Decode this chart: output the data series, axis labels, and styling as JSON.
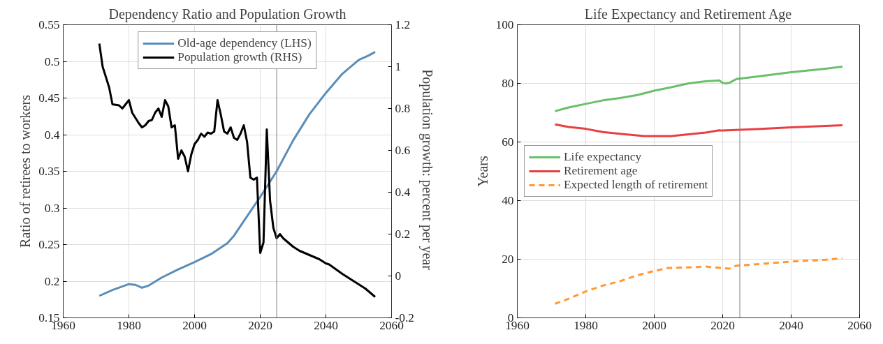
{
  "chart_data": [
    {
      "type": "line",
      "title": "Dependency Ratio and Population Growth",
      "ylabel": "Ratio of retirees to workers",
      "y2label": "Population growth:  percent per year",
      "xlim": [
        1960,
        2060
      ],
      "xticks": [
        1960,
        1980,
        2000,
        2020,
        2040,
        2060
      ],
      "ylim": [
        0.15,
        0.55
      ],
      "yticks": [
        0.15,
        0.2,
        0.25,
        0.3,
        0.35,
        0.4,
        0.45,
        0.5,
        0.55
      ],
      "y2lim": [
        -0.2,
        1.2
      ],
      "y2ticks": [
        -0.2,
        0,
        0.2,
        0.4,
        0.6,
        0.8,
        1,
        1.2
      ],
      "grid": true,
      "legend": "top",
      "line_style": "solid",
      "ref_lines": [
        {
          "axis": "x",
          "value": 2025,
          "color": "#808080"
        }
      ],
      "series": [
        {
          "name": "Old-age dependency (LHS)",
          "color": "#5b8db8",
          "x": [
            1971,
            1975,
            1980,
            1982,
            1984,
            1986,
            1990,
            1995,
            2000,
            2005,
            2010,
            2012,
            2015,
            2020,
            2025,
            2030,
            2035,
            2040,
            2045,
            2050,
            2053,
            2055
          ],
          "values": [
            0.18,
            0.188,
            0.196,
            0.195,
            0.191,
            0.194,
            0.205,
            0.216,
            0.226,
            0.237,
            0.252,
            0.262,
            0.282,
            0.315,
            0.35,
            0.392,
            0.428,
            0.457,
            0.483,
            0.502,
            0.508,
            0.513
          ]
        },
        {
          "name": "Population growth (RHS)",
          "color": "#000000",
          "axis": "y2",
          "x": [
            1971,
            1972,
            1973,
            1974,
            1975,
            1977,
            1978,
            1980,
            1981,
            1983,
            1984,
            1985,
            1986,
            1987,
            1988,
            1989,
            1990,
            1991,
            1992,
            1993,
            1994,
            1995,
            1996,
            1997,
            1998,
            1999,
            2000,
            2001,
            2002,
            2003,
            2004,
            2005,
            2006,
            2007,
            2008,
            2009,
            2010,
            2011,
            2012,
            2013,
            2014,
            2015,
            2016,
            2017,
            2018,
            2019,
            2020,
            2021,
            2022,
            2023,
            2024,
            2025,
            2026,
            2027,
            2030,
            2032,
            2035,
            2038,
            2040,
            2041,
            2045,
            2048,
            2050,
            2052,
            2055
          ],
          "values": [
            1.11,
            1.0,
            0.95,
            0.9,
            0.82,
            0.815,
            0.8,
            0.84,
            0.78,
            0.73,
            0.71,
            0.72,
            0.74,
            0.745,
            0.78,
            0.8,
            0.76,
            0.84,
            0.81,
            0.71,
            0.72,
            0.56,
            0.6,
            0.57,
            0.5,
            0.58,
            0.63,
            0.65,
            0.68,
            0.665,
            0.685,
            0.68,
            0.69,
            0.84,
            0.77,
            0.69,
            0.68,
            0.71,
            0.66,
            0.65,
            0.68,
            0.72,
            0.64,
            0.47,
            0.46,
            0.47,
            0.11,
            0.16,
            0.7,
            0.36,
            0.23,
            0.18,
            0.2,
            0.18,
            0.14,
            0.12,
            0.1,
            0.08,
            0.06,
            0.055,
            0.01,
            -0.02,
            -0.04,
            -0.06,
            -0.1
          ]
        }
      ]
    },
    {
      "type": "line",
      "title": "Life Expectancy and Retirement Age",
      "ylabel": "Years",
      "xlim": [
        1960,
        2060
      ],
      "xticks": [
        1960,
        1980,
        2000,
        2020,
        2040,
        2060
      ],
      "ylim": [
        0,
        100
      ],
      "yticks": [
        0,
        20,
        40,
        60,
        80,
        100
      ],
      "grid": true,
      "legend": "left",
      "ref_lines": [
        {
          "axis": "x",
          "value": 2025,
          "color": "#808080"
        }
      ],
      "series": [
        {
          "name": "Life expectancy",
          "color": "#6abf69",
          "line_style": "solid",
          "x": [
            1971,
            1975,
            1980,
            1985,
            1990,
            1995,
            2000,
            2005,
            2010,
            2015,
            2019,
            2020,
            2021,
            2022,
            2024,
            2030,
            2040,
            2050,
            2055
          ],
          "values": [
            70.5,
            71.8,
            73,
            74.2,
            75,
            76,
            77.5,
            78.7,
            80,
            80.7,
            81,
            80.2,
            80,
            80.2,
            81.5,
            82.3,
            83.8,
            85,
            85.7
          ]
        },
        {
          "name": "Retirement age",
          "color": "#e84040",
          "line_style": "solid",
          "x": [
            1971,
            1975,
            1980,
            1985,
            1990,
            1997,
            2005,
            2010,
            2015,
            2019,
            2020,
            2030,
            2040,
            2055
          ],
          "values": [
            66,
            65.1,
            64.5,
            63.4,
            62.8,
            62,
            62,
            62.6,
            63.2,
            64,
            63.9,
            64.4,
            65,
            65.7
          ]
        },
        {
          "name": "Expected length of retirement",
          "color": "#ff9933",
          "line_style": "dashed",
          "x": [
            1971,
            1975,
            1980,
            1985,
            1990,
            1995,
            2000,
            2004,
            2010,
            2015,
            2020,
            2022,
            2024,
            2030,
            2040,
            2050,
            2055
          ],
          "values": [
            4.8,
            6.5,
            9,
            11,
            12.5,
            14.5,
            16,
            17,
            17.2,
            17.5,
            17,
            16.8,
            17.8,
            18.3,
            19.2,
            19.8,
            20.3
          ]
        }
      ]
    }
  ]
}
